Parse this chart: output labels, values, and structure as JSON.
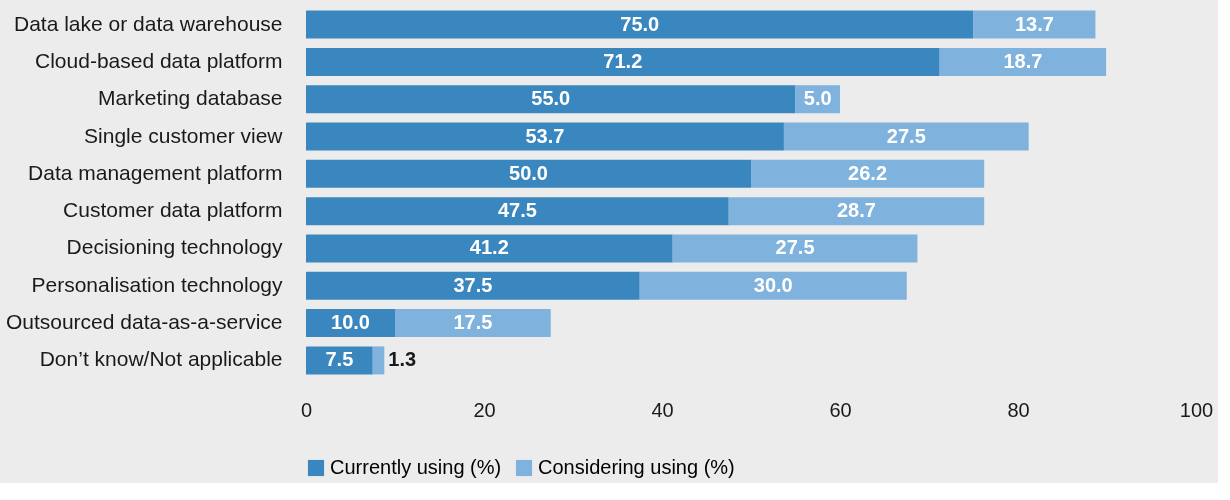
{
  "chart_data": {
    "type": "bar",
    "orientation": "horizontal",
    "stacked": true,
    "legend": "bottom",
    "grid": false,
    "categories": [
      "Data lake or data warehouse",
      "Cloud-based data platform",
      "Marketing database",
      "Single customer view",
      "Data management platform",
      "Customer data platform",
      "Decisioning technology",
      "Personalisation technology",
      "Outsourced data-as-a-service",
      "Don’t know/Not applicable"
    ],
    "series": [
      {
        "name": "Currently using (%)",
        "color": "#3a87c0",
        "values": [
          75.0,
          71.2,
          55.0,
          53.7,
          50.0,
          47.5,
          41.2,
          37.5,
          10.0,
          7.5
        ],
        "value_labels": [
          "75.0",
          "71.2",
          "55.0",
          "53.7",
          "50.0",
          "47.5",
          "41.2",
          "37.5",
          "10.0",
          "7.5"
        ]
      },
      {
        "name": "Considering using (%)",
        "color": "#7fb3de",
        "values": [
          13.7,
          18.7,
          5.0,
          27.5,
          26.2,
          28.7,
          27.5,
          30.0,
          17.5,
          1.3
        ],
        "value_labels": [
          "13.7",
          "18.7",
          "5.0",
          "27.5",
          "26.2",
          "28.7",
          "27.5",
          "30.0",
          "17.5",
          "1.3"
        ]
      }
    ],
    "xlim": [
      0,
      100
    ],
    "xticks": [
      0,
      20,
      40,
      60,
      80,
      100
    ]
  }
}
